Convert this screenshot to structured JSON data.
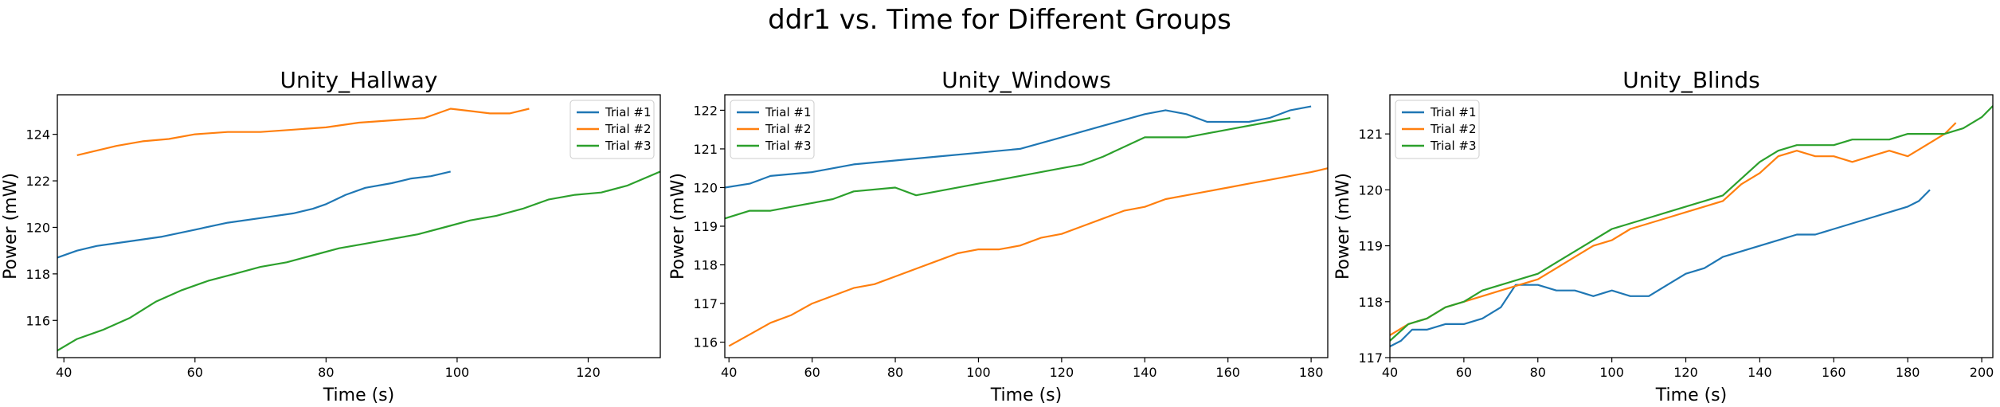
{
  "suptitle": "ddr1 vs. Time for Different Groups",
  "chart_data": [
    {
      "type": "line",
      "title": "Unity_Hallway",
      "xlabel": "Time (s)",
      "ylabel": "Power (mW)",
      "xlim": [
        39,
        131
      ],
      "ylim": [
        114.4,
        125.7
      ],
      "xticks": [
        40,
        60,
        80,
        100,
        120
      ],
      "yticks": [
        116,
        118,
        120,
        122,
        124
      ],
      "legend_position": "top-right",
      "grid": false,
      "series": [
        {
          "name": "Trial #1",
          "color": "#1f77b4",
          "x": [
            39,
            42,
            45,
            50,
            55,
            60,
            65,
            70,
            75,
            78,
            80,
            83,
            86,
            90,
            93,
            96,
            99
          ],
          "y": [
            118.7,
            119.0,
            119.2,
            119.4,
            119.6,
            119.9,
            120.2,
            120.4,
            120.6,
            120.8,
            121.0,
            121.4,
            121.7,
            121.9,
            122.1,
            122.2,
            122.4
          ]
        },
        {
          "name": "Trial #2",
          "color": "#ff7f0e",
          "x": [
            42,
            45,
            48,
            52,
            56,
            60,
            65,
            70,
            75,
            80,
            85,
            90,
            95,
            97,
            99,
            102,
            105,
            108,
            111
          ],
          "y": [
            123.1,
            123.3,
            123.5,
            123.7,
            123.8,
            124.0,
            124.1,
            124.1,
            124.2,
            124.3,
            124.5,
            124.6,
            124.7,
            124.9,
            125.1,
            125.0,
            124.9,
            124.9,
            125.1
          ]
        },
        {
          "name": "Trial #3",
          "color": "#2ca02c",
          "x": [
            39,
            42,
            46,
            50,
            54,
            58,
            62,
            66,
            70,
            74,
            78,
            82,
            86,
            90,
            94,
            98,
            102,
            106,
            110,
            114,
            118,
            122,
            126,
            131
          ],
          "y": [
            114.7,
            115.2,
            115.6,
            116.1,
            116.8,
            117.3,
            117.7,
            118.0,
            118.3,
            118.5,
            118.8,
            119.1,
            119.3,
            119.5,
            119.7,
            120.0,
            120.3,
            120.5,
            120.8,
            121.2,
            121.4,
            121.5,
            121.8,
            122.4
          ]
        }
      ]
    },
    {
      "type": "line",
      "title": "Unity_Windows",
      "xlabel": "Time (s)",
      "ylabel": "Power (mW)",
      "xlim": [
        39,
        184
      ],
      "ylim": [
        115.6,
        122.4
      ],
      "xticks": [
        40,
        60,
        80,
        100,
        120,
        140,
        160,
        180
      ],
      "yticks": [
        116,
        117,
        118,
        119,
        120,
        121,
        122
      ],
      "legend_position": "top-left",
      "grid": false,
      "series": [
        {
          "name": "Trial #1",
          "color": "#1f77b4",
          "x": [
            39,
            45,
            50,
            60,
            70,
            80,
            90,
            100,
            110,
            120,
            130,
            140,
            145,
            150,
            155,
            160,
            165,
            170,
            175,
            180
          ],
          "y": [
            120.0,
            120.1,
            120.3,
            120.4,
            120.6,
            120.7,
            120.8,
            120.9,
            121.0,
            121.3,
            121.6,
            121.9,
            122.0,
            121.9,
            121.7,
            121.7,
            121.7,
            121.8,
            122.0,
            122.1
          ]
        },
        {
          "name": "Trial #3",
          "color": "#2ca02c",
          "x": [
            39,
            45,
            50,
            55,
            60,
            65,
            70,
            80,
            85,
            90,
            100,
            110,
            120,
            125,
            130,
            140,
            145,
            150,
            160,
            170,
            175
          ],
          "y": [
            119.2,
            119.4,
            119.4,
            119.5,
            119.6,
            119.7,
            119.9,
            120.0,
            119.8,
            119.9,
            120.1,
            120.3,
            120.5,
            120.6,
            120.8,
            121.3,
            121.3,
            121.3,
            121.5,
            121.7,
            121.8
          ]
        },
        {
          "name": "Trial #2",
          "color": "#ff7f0e",
          "x": [
            40,
            45,
            50,
            55,
            60,
            65,
            70,
            75,
            80,
            85,
            90,
            95,
            100,
            105,
            110,
            115,
            120,
            125,
            130,
            135,
            140,
            145,
            150,
            155,
            160,
            165,
            170,
            175,
            180,
            184
          ],
          "y": [
            115.9,
            116.2,
            116.5,
            116.7,
            117.0,
            117.2,
            117.4,
            117.5,
            117.7,
            117.9,
            118.1,
            118.3,
            118.4,
            118.4,
            118.5,
            118.7,
            118.8,
            119.0,
            119.2,
            119.4,
            119.5,
            119.7,
            119.8,
            119.9,
            120.0,
            120.1,
            120.2,
            120.3,
            120.4,
            120.5
          ]
        }
      ]
    },
    {
      "type": "line",
      "title": "Unity_Blinds",
      "xlabel": "Time (s)",
      "ylabel": "Power (mW)",
      "xlim": [
        40,
        203
      ],
      "ylim": [
        117,
        121.7
      ],
      "xticks": [
        40,
        60,
        80,
        100,
        120,
        140,
        160,
        180,
        200
      ],
      "yticks": [
        117,
        118,
        119,
        120,
        121
      ],
      "legend_position": "top-left",
      "grid": false,
      "series": [
        {
          "name": "Trial #1",
          "color": "#1f77b4",
          "x": [
            40,
            43,
            46,
            50,
            55,
            60,
            65,
            70,
            74,
            77,
            80,
            85,
            90,
            95,
            100,
            105,
            110,
            115,
            120,
            125,
            130,
            135,
            140,
            145,
            150,
            155,
            160,
            165,
            170,
            175,
            180,
            183,
            186
          ],
          "y": [
            117.2,
            117.3,
            117.5,
            117.5,
            117.6,
            117.6,
            117.7,
            117.9,
            118.3,
            118.3,
            118.3,
            118.2,
            118.2,
            118.1,
            118.2,
            118.1,
            118.1,
            118.3,
            118.5,
            118.6,
            118.8,
            118.9,
            119.0,
            119.1,
            119.2,
            119.2,
            119.3,
            119.4,
            119.5,
            119.6,
            119.7,
            119.8,
            120.0
          ]
        },
        {
          "name": "Trial #2",
          "color": "#ff7f0e",
          "x": [
            40,
            45,
            50,
            55,
            60,
            65,
            70,
            75,
            80,
            85,
            90,
            95,
            100,
            105,
            110,
            115,
            120,
            125,
            130,
            135,
            140,
            145,
            150,
            155,
            160,
            165,
            170,
            175,
            180,
            185,
            190,
            193
          ],
          "y": [
            117.4,
            117.6,
            117.7,
            117.9,
            118.0,
            118.1,
            118.2,
            118.3,
            118.4,
            118.6,
            118.8,
            119.0,
            119.1,
            119.3,
            119.4,
            119.5,
            119.6,
            119.7,
            119.8,
            120.1,
            120.3,
            120.6,
            120.7,
            120.6,
            120.6,
            120.5,
            120.6,
            120.7,
            120.6,
            120.8,
            121.0,
            121.2
          ]
        },
        {
          "name": "Trial #3",
          "color": "#2ca02c",
          "x": [
            40,
            45,
            50,
            55,
            60,
            65,
            70,
            75,
            80,
            85,
            90,
            95,
            100,
            105,
            110,
            115,
            120,
            125,
            130,
            135,
            140,
            145,
            150,
            155,
            160,
            165,
            170,
            175,
            180,
            185,
            190,
            195,
            200,
            203
          ],
          "y": [
            117.3,
            117.6,
            117.7,
            117.9,
            118.0,
            118.2,
            118.3,
            118.4,
            118.5,
            118.7,
            118.9,
            119.1,
            119.3,
            119.4,
            119.5,
            119.6,
            119.7,
            119.8,
            119.9,
            120.2,
            120.5,
            120.7,
            120.8,
            120.8,
            120.8,
            120.9,
            120.9,
            120.9,
            121.0,
            121.0,
            121.0,
            121.1,
            121.3,
            121.5
          ]
        }
      ]
    }
  ]
}
